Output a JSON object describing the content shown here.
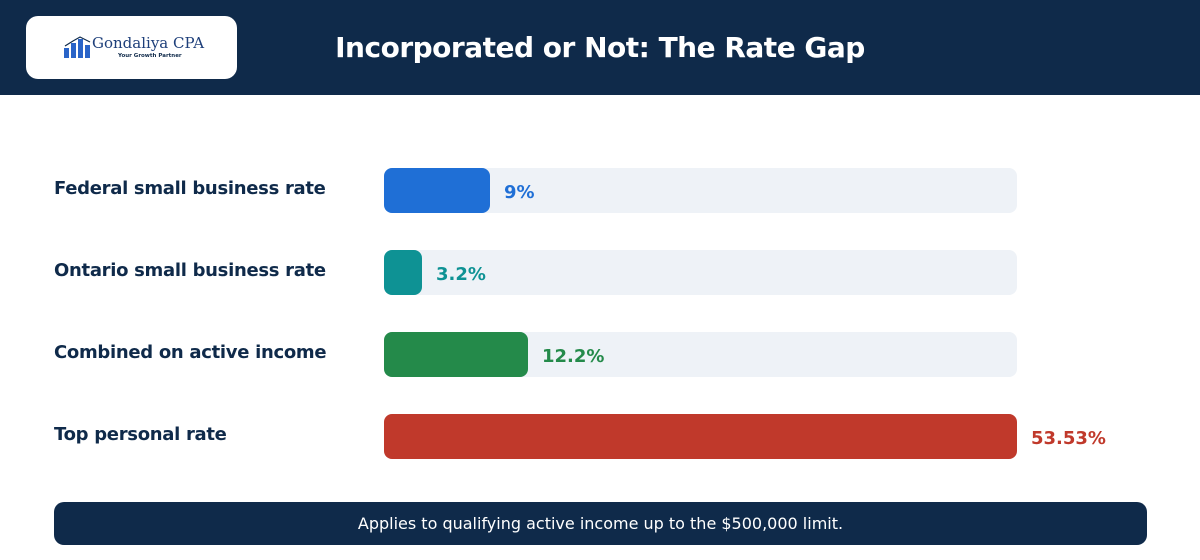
{
  "header": {
    "logo_name": "Gondaliya CPA",
    "logo_tagline": "Your Growth Partner",
    "title": "Incorporated or Not: The Rate Gap"
  },
  "chart_data": {
    "type": "bar",
    "orientation": "horizontal",
    "title": "Incorporated or Not: The Rate Gap",
    "categories": [
      "Federal small business rate",
      "Ontario small business rate",
      "Combined on active income",
      "Top personal rate"
    ],
    "values": [
      9,
      3.2,
      12.2,
      53.53
    ],
    "value_labels": [
      "9%",
      "3.2%",
      "12.2%",
      "53.53%"
    ],
    "colors": [
      "#1f6fd6",
      "#0e9294",
      "#248a4a",
      "#c0392b"
    ],
    "xlim": [
      0,
      53.53
    ],
    "grid": false
  },
  "footnote": "Applies to qualifying active income up to the $500,000 limit."
}
